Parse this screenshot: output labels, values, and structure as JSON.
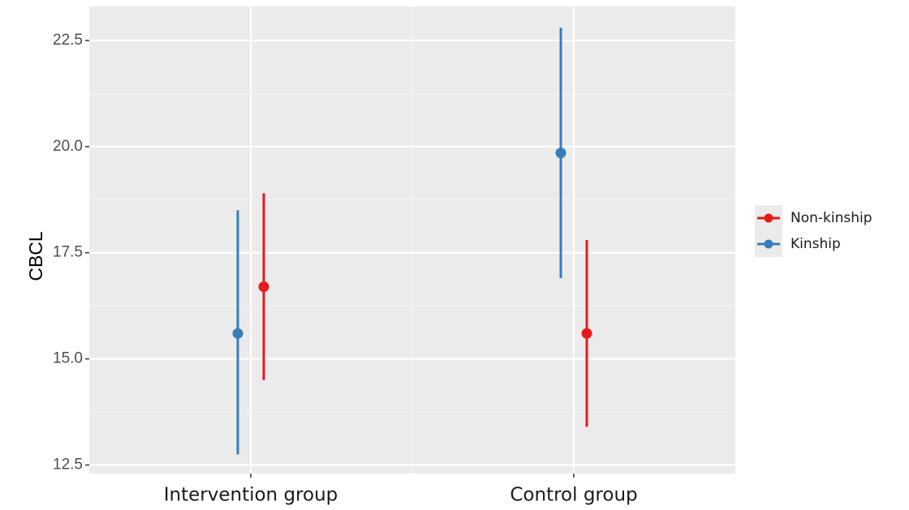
{
  "chart_data": {
    "type": "scatter",
    "ylabel": "CBCL",
    "xlabel": "",
    "categories": [
      "Intervention group",
      "Control group"
    ],
    "ylim": [
      12.3,
      23.3
    ],
    "yticks": [
      12.5,
      15.0,
      17.5,
      20.0,
      22.5
    ],
    "ytick_labels": [
      "12.5",
      "15.0",
      "17.5",
      "20.0",
      "22.5"
    ],
    "grid": true,
    "legend_position": "right",
    "series": [
      {
        "name": "Non-kinship",
        "color": "#e41a1c",
        "points": [
          {
            "category": "Intervention group",
            "mean": 16.7,
            "lower": 14.5,
            "upper": 18.9
          },
          {
            "category": "Control group",
            "mean": 15.6,
            "lower": 13.4,
            "upper": 17.8
          }
        ]
      },
      {
        "name": "Kinship",
        "color": "#377eb8",
        "points": [
          {
            "category": "Intervention group",
            "mean": 15.6,
            "lower": 12.75,
            "upper": 18.5
          },
          {
            "category": "Control group",
            "mean": 19.85,
            "lower": 16.9,
            "upper": 22.8
          }
        ]
      }
    ]
  }
}
